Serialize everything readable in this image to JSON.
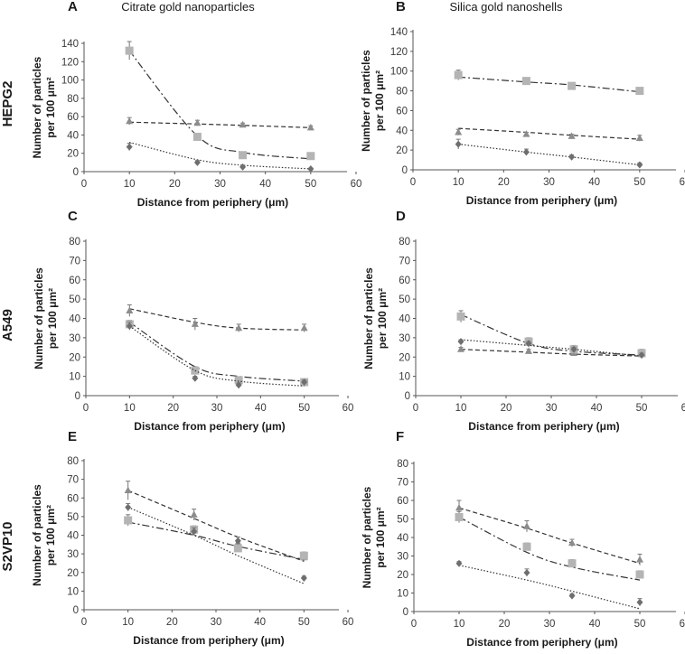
{
  "column_titles": [
    "Citrate gold nanoparticles",
    "Silica gold nanoshells"
  ],
  "row_labels": [
    "HEPG2",
    "A549",
    "S2VP10"
  ],
  "series_colors": {
    "triangle": "#8c8c8c",
    "square": "#b4b4b4",
    "diamond": "#6e6e6e",
    "line": "#333333"
  },
  "chart_data": [
    {
      "type": "scatter",
      "panel": "A",
      "cell_line": "HEPG2",
      "particle": "Citrate gold nanoparticles",
      "xlabel": "Distance from periphery (μm)",
      "ylabel": "Number of particles per 100 μm²",
      "xlim": [
        0,
        60
      ],
      "ylim": [
        0,
        140
      ],
      "xticks": [
        "0",
        "10",
        "20",
        "30",
        "40",
        "50",
        "60"
      ],
      "yticks": [
        "0",
        "20",
        "40",
        "60",
        "80",
        "100",
        "120",
        "140"
      ],
      "x": [
        10,
        25,
        35,
        50
      ],
      "series": [
        {
          "marker": "triangle",
          "line": "dashed",
          "values": [
            55,
            53,
            51,
            48
          ],
          "errors": [
            4,
            3,
            2,
            2
          ],
          "fit": [
            54,
            52,
            50.5,
            48
          ]
        },
        {
          "marker": "square",
          "line": "dashdot",
          "values": [
            132,
            38,
            18,
            17
          ],
          "errors": [
            10,
            3,
            2,
            2
          ],
          "fit": [
            132,
            39,
            21,
            14
          ]
        },
        {
          "marker": "diamond",
          "line": "dotted",
          "values": [
            27,
            10,
            5,
            3
          ],
          "errors": [
            4,
            2,
            1,
            1
          ],
          "fit": [
            32,
            13,
            7,
            3
          ]
        }
      ]
    },
    {
      "type": "scatter",
      "panel": "B",
      "cell_line": "HEPG2",
      "particle": "Silica gold nanoshells",
      "xlabel": "Distance from periphery (μm)",
      "ylabel": "Number of particles per 100 μm²",
      "xlim": [
        0,
        60
      ],
      "ylim": [
        0,
        140
      ],
      "xticks": [
        "0",
        "10",
        "20",
        "30",
        "40",
        "50",
        "60"
      ],
      "yticks": [
        "0",
        "20",
        "40",
        "60",
        "80",
        "100",
        "120",
        "140"
      ],
      "x": [
        10,
        25,
        35,
        50
      ],
      "series": [
        {
          "marker": "triangle",
          "line": "dashed",
          "values": [
            38,
            36,
            34,
            32
          ],
          "errors": [
            3,
            2,
            2,
            3
          ],
          "fit": [
            42,
            38,
            35,
            31
          ]
        },
        {
          "marker": "square",
          "line": "dashdot",
          "values": [
            96,
            90,
            85,
            80
          ],
          "errors": [
            5,
            2,
            2,
            2
          ],
          "fit": [
            94,
            89,
            86,
            79
          ]
        },
        {
          "marker": "diamond",
          "line": "dotted",
          "values": [
            26,
            18,
            13,
            5
          ],
          "errors": [
            5,
            3,
            2,
            2
          ],
          "fit": [
            26,
            18,
            13,
            5
          ]
        }
      ]
    },
    {
      "type": "scatter",
      "panel": "C",
      "cell_line": "A549",
      "particle": "Citrate gold nanoparticles",
      "xlabel": "Distance from periphery (μm)",
      "ylabel": "Number of particles per 100 μm²",
      "xlim": [
        0,
        60
      ],
      "ylim": [
        0,
        80
      ],
      "xticks": [
        "0",
        "10",
        "20",
        "30",
        "40",
        "50",
        "60"
      ],
      "yticks": [
        "0",
        "10",
        "20",
        "30",
        "40",
        "50",
        "60",
        "70",
        "80"
      ],
      "x": [
        10,
        25,
        35,
        50
      ],
      "series": [
        {
          "marker": "triangle",
          "line": "dashed",
          "values": [
            44,
            37,
            35,
            35
          ],
          "errors": [
            3,
            3,
            2,
            2
          ],
          "fit": [
            45,
            38,
            35,
            34
          ]
        },
        {
          "marker": "square",
          "line": "dashdot",
          "values": [
            37,
            13,
            8,
            7
          ],
          "errors": [
            2,
            2,
            1,
            1
          ],
          "fit": [
            38,
            15,
            10,
            7.5
          ]
        },
        {
          "marker": "diamond",
          "line": "dotted",
          "values": [
            36,
            9,
            5.5,
            7
          ],
          "errors": [
            2,
            1,
            1,
            1
          ],
          "fit": [
            36,
            13,
            7.5,
            5
          ]
        }
      ]
    },
    {
      "type": "scatter",
      "panel": "D",
      "cell_line": "A549",
      "particle": "Silica gold nanoshells",
      "xlabel": "Distance from periphery (μm)",
      "ylabel": "Number of particles per 100 μm²",
      "xlim": [
        0,
        60
      ],
      "ylim": [
        0,
        80
      ],
      "xticks": [
        "0",
        "10",
        "20",
        "30",
        "40",
        "50",
        "60"
      ],
      "yticks": [
        "0",
        "10",
        "20",
        "30",
        "40",
        "50",
        "60",
        "70",
        "80"
      ],
      "x": [
        10,
        25,
        35,
        50
      ],
      "series": [
        {
          "marker": "triangle",
          "line": "dashed",
          "values": [
            24,
            23,
            22,
            22
          ],
          "errors": [
            1,
            1,
            1,
            1
          ],
          "fit": [
            24,
            22.5,
            21.5,
            20.5
          ]
        },
        {
          "marker": "square",
          "line": "dashdot",
          "values": [
            41,
            28,
            24,
            22
          ],
          "errors": [
            3,
            2,
            2,
            2
          ],
          "fit": [
            42,
            27,
            23,
            21
          ]
        },
        {
          "marker": "diamond",
          "line": "dotted",
          "values": [
            28,
            27,
            24,
            21
          ],
          "errors": [
            1,
            1,
            1,
            1
          ],
          "fit": [
            29,
            26,
            24,
            20.5
          ]
        }
      ]
    },
    {
      "type": "scatter",
      "panel": "E",
      "cell_line": "S2VP10",
      "particle": "Citrate gold nanoparticles",
      "xlabel": "Distance from periphery (μm)",
      "ylabel": "Number of particles per 100 μm²",
      "xlim": [
        0,
        60
      ],
      "ylim": [
        0,
        80
      ],
      "xticks": [
        "0",
        "10",
        "20",
        "30",
        "40",
        "50",
        "60"
      ],
      "yticks": [
        "0",
        "10",
        "20",
        "30",
        "40",
        "50",
        "60",
        "70",
        "80"
      ],
      "x": [
        10,
        25,
        35,
        50
      ],
      "series": [
        {
          "marker": "triangle",
          "line": "dashed",
          "values": [
            64,
            51,
            36,
            28
          ],
          "errors": [
            5,
            3,
            3,
            2
          ],
          "fit": [
            64,
            49,
            39,
            26
          ]
        },
        {
          "marker": "square",
          "line": "dashdot",
          "values": [
            48,
            43,
            33,
            29
          ],
          "errors": [
            3,
            2,
            2,
            2
          ],
          "fit": [
            47,
            40,
            34,
            27
          ]
        },
        {
          "marker": "diamond",
          "line": "dotted",
          "values": [
            55,
            42,
            37,
            17
          ],
          "errors": [
            2,
            2,
            2,
            1
          ],
          "fit": [
            55,
            40,
            29,
            14
          ]
        }
      ]
    },
    {
      "type": "scatter",
      "panel": "F",
      "cell_line": "S2VP10",
      "particle": "Silica gold nanoshells",
      "xlabel": "Distance from periphery (μm)",
      "ylabel": "Number of particles per 100 μm²",
      "xlim": [
        0,
        60
      ],
      "ylim": [
        0,
        80
      ],
      "xticks": [
        "0",
        "10",
        "20",
        "30",
        "40",
        "50",
        "60"
      ],
      "yticks": [
        "0",
        "10",
        "20",
        "30",
        "40",
        "50",
        "60",
        "70",
        "80"
      ],
      "x": [
        10,
        25,
        35,
        50
      ],
      "series": [
        {
          "marker": "triangle",
          "line": "dashed",
          "values": [
            56,
            46,
            37,
            28
          ],
          "errors": [
            4,
            3,
            2,
            3
          ],
          "fit": [
            56,
            45,
            37,
            26
          ]
        },
        {
          "marker": "square",
          "line": "dashdot",
          "values": [
            51,
            35,
            26,
            20
          ],
          "errors": [
            3,
            2,
            2,
            2
          ],
          "fit": [
            51,
            32,
            24,
            17
          ]
        },
        {
          "marker": "diamond",
          "line": "dotted",
          "values": [
            26,
            21,
            8.5,
            5
          ],
          "errors": [
            1,
            2,
            1,
            2
          ],
          "fit": [
            25,
            17,
            11,
            1.5
          ]
        }
      ]
    }
  ]
}
